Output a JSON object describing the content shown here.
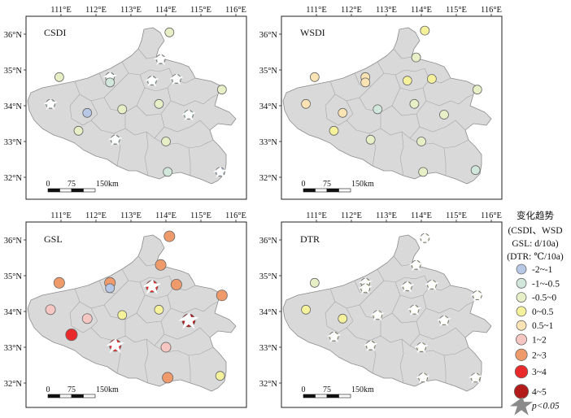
{
  "map": {
    "lon_ticks": [
      "111°E",
      "112°E",
      "113°E",
      "114°E",
      "115°E",
      "116°E"
    ],
    "lat_ticks": [
      "36°N",
      "35°N",
      "34°N",
      "33°N",
      "32°N"
    ],
    "lon_values": [
      111,
      112,
      113,
      114,
      115,
      116
    ],
    "lat_values": [
      36,
      35,
      34,
      33,
      32
    ],
    "scale_bar": {
      "labels": [
        "0",
        "75",
        "150km"
      ]
    },
    "panels": [
      {
        "id": "csdi",
        "title": "CSDI",
        "stations": [
          {
            "lon": 114.1,
            "lat": 36.05,
            "cls": 2,
            "sig": false
          },
          {
            "lon": 113.85,
            "lat": 35.3,
            "cls": 1,
            "sig": true
          },
          {
            "lon": 110.95,
            "lat": 34.8,
            "cls": 2,
            "sig": false
          },
          {
            "lon": 112.4,
            "lat": 34.8,
            "cls": 1,
            "sig": true
          },
          {
            "lon": 112.4,
            "lat": 34.65,
            "cls": 1,
            "sig": false
          },
          {
            "lon": 113.6,
            "lat": 34.7,
            "cls": 1,
            "sig": true
          },
          {
            "lon": 114.3,
            "lat": 34.75,
            "cls": 1,
            "sig": true
          },
          {
            "lon": 115.6,
            "lat": 34.45,
            "cls": 2,
            "sig": false
          },
          {
            "lon": 110.7,
            "lat": 34.05,
            "cls": 1,
            "sig": true
          },
          {
            "lon": 111.75,
            "lat": 33.8,
            "cls": 0,
            "sig": false
          },
          {
            "lon": 112.75,
            "lat": 33.9,
            "cls": 2,
            "sig": false
          },
          {
            "lon": 113.8,
            "lat": 34.05,
            "cls": 2,
            "sig": false
          },
          {
            "lon": 114.65,
            "lat": 33.75,
            "cls": 1,
            "sig": true
          },
          {
            "lon": 111.5,
            "lat": 33.3,
            "cls": 2,
            "sig": false
          },
          {
            "lon": 112.55,
            "lat": 33.05,
            "cls": 1,
            "sig": true
          },
          {
            "lon": 114.0,
            "lat": 33.0,
            "cls": 2,
            "sig": false
          },
          {
            "lon": 114.05,
            "lat": 32.15,
            "cls": 1,
            "sig": false
          },
          {
            "lon": 115.55,
            "lat": 32.15,
            "cls": 0,
            "sig": true
          }
        ]
      },
      {
        "id": "wsdi",
        "title": "WSDI",
        "stations": [
          {
            "lon": 114.1,
            "lat": 36.1,
            "cls": 3,
            "sig": false
          },
          {
            "lon": 113.85,
            "lat": 35.35,
            "cls": 2,
            "sig": false
          },
          {
            "lon": 110.95,
            "lat": 34.8,
            "cls": 4,
            "sig": false
          },
          {
            "lon": 112.4,
            "lat": 34.8,
            "cls": 4,
            "sig": false
          },
          {
            "lon": 112.4,
            "lat": 34.65,
            "cls": 4,
            "sig": false
          },
          {
            "lon": 113.6,
            "lat": 34.7,
            "cls": 3,
            "sig": false
          },
          {
            "lon": 114.3,
            "lat": 34.75,
            "cls": 3,
            "sig": false
          },
          {
            "lon": 115.6,
            "lat": 34.45,
            "cls": 2,
            "sig": false
          },
          {
            "lon": 110.7,
            "lat": 34.05,
            "cls": 4,
            "sig": false
          },
          {
            "lon": 111.75,
            "lat": 33.8,
            "cls": 4,
            "sig": false
          },
          {
            "lon": 112.75,
            "lat": 33.9,
            "cls": 1,
            "sig": false
          },
          {
            "lon": 113.8,
            "lat": 34.05,
            "cls": 2,
            "sig": false
          },
          {
            "lon": 114.65,
            "lat": 33.75,
            "cls": 2,
            "sig": false
          },
          {
            "lon": 111.5,
            "lat": 33.3,
            "cls": 3,
            "sig": false
          },
          {
            "lon": 112.55,
            "lat": 33.05,
            "cls": 2,
            "sig": false
          },
          {
            "lon": 114.0,
            "lat": 33.0,
            "cls": 2,
            "sig": false
          },
          {
            "lon": 114.05,
            "lat": 32.15,
            "cls": 2,
            "sig": false
          },
          {
            "lon": 115.55,
            "lat": 32.2,
            "cls": 1,
            "sig": false
          }
        ]
      },
      {
        "id": "gsl",
        "title": "GSL",
        "stations": [
          {
            "lon": 114.1,
            "lat": 36.1,
            "cls": 6,
            "sig": false
          },
          {
            "lon": 113.85,
            "lat": 35.3,
            "cls": 6,
            "sig": false
          },
          {
            "lon": 110.95,
            "lat": 34.8,
            "cls": 6,
            "sig": false
          },
          {
            "lon": 112.4,
            "lat": 34.8,
            "cls": 6,
            "sig": false
          },
          {
            "lon": 112.4,
            "lat": 34.65,
            "cls": 0,
            "sig": false
          },
          {
            "lon": 113.6,
            "lat": 34.7,
            "cls": 7,
            "sig": true
          },
          {
            "lon": 114.3,
            "lat": 34.75,
            "cls": 6,
            "sig": false
          },
          {
            "lon": 115.6,
            "lat": 34.45,
            "cls": 6,
            "sig": false
          },
          {
            "lon": 110.7,
            "lat": 34.05,
            "cls": 5,
            "sig": false
          },
          {
            "lon": 111.75,
            "lat": 33.8,
            "cls": 5,
            "sig": false
          },
          {
            "lon": 112.75,
            "lat": 33.9,
            "cls": 3,
            "sig": false
          },
          {
            "lon": 113.8,
            "lat": 34.05,
            "cls": 3,
            "sig": false
          },
          {
            "lon": 114.65,
            "lat": 33.75,
            "cls": 8,
            "sig": true
          },
          {
            "lon": 111.3,
            "lat": 33.35,
            "cls": 7,
            "sig": false
          },
          {
            "lon": 112.55,
            "lat": 33.05,
            "cls": 7,
            "sig": true
          },
          {
            "lon": 114.0,
            "lat": 33.0,
            "cls": 5,
            "sig": false
          },
          {
            "lon": 114.05,
            "lat": 32.15,
            "cls": 6,
            "sig": false
          },
          {
            "lon": 115.55,
            "lat": 32.2,
            "cls": 3,
            "sig": false
          }
        ]
      },
      {
        "id": "dtr",
        "title": "DTR",
        "stations": [
          {
            "lon": 114.1,
            "lat": 36.05,
            "cls": 2,
            "sig": true
          },
          {
            "lon": 113.85,
            "lat": 35.3,
            "cls": 2,
            "sig": true
          },
          {
            "lon": 110.95,
            "lat": 34.8,
            "cls": 2,
            "sig": false
          },
          {
            "lon": 112.4,
            "lat": 34.8,
            "cls": 2,
            "sig": true
          },
          {
            "lon": 112.4,
            "lat": 34.65,
            "cls": 2,
            "sig": true
          },
          {
            "lon": 113.6,
            "lat": 34.7,
            "cls": 2,
            "sig": true
          },
          {
            "lon": 114.3,
            "lat": 34.75,
            "cls": 2,
            "sig": true
          },
          {
            "lon": 115.6,
            "lat": 34.45,
            "cls": 2,
            "sig": true
          },
          {
            "lon": 110.7,
            "lat": 34.05,
            "cls": 3,
            "sig": false
          },
          {
            "lon": 111.75,
            "lat": 33.8,
            "cls": 3,
            "sig": false
          },
          {
            "lon": 112.75,
            "lat": 33.9,
            "cls": 2,
            "sig": true
          },
          {
            "lon": 113.8,
            "lat": 34.05,
            "cls": 2,
            "sig": true
          },
          {
            "lon": 114.65,
            "lat": 33.75,
            "cls": 2,
            "sig": true
          },
          {
            "lon": 111.5,
            "lat": 33.3,
            "cls": 2,
            "sig": true
          },
          {
            "lon": 112.55,
            "lat": 33.05,
            "cls": 2,
            "sig": true
          },
          {
            "lon": 114.0,
            "lat": 33.0,
            "cls": 2,
            "sig": true
          },
          {
            "lon": 114.05,
            "lat": 32.15,
            "cls": 2,
            "sig": true
          },
          {
            "lon": 115.55,
            "lat": 32.15,
            "cls": 2,
            "sig": true
          }
        ]
      }
    ]
  },
  "legend": {
    "title_lines": [
      "变化趋势",
      "(CSDI、WSD",
      "GSL: d/10a)",
      "(DTR: ℃/10a)"
    ],
    "classes": [
      {
        "label": "-2~-1",
        "color": "#b7c7e6",
        "size": 1.0
      },
      {
        "label": "-1~-0.5",
        "color": "#d2e7dc",
        "size": 1.0
      },
      {
        "label": "-0.5~0",
        "color": "#e6efc6",
        "size": 1.0
      },
      {
        "label": "0~0.5",
        "color": "#f6f29b",
        "size": 1.0
      },
      {
        "label": "0.5~1",
        "color": "#fbe3b4",
        "size": 1.0
      },
      {
        "label": "1~2",
        "color": "#f6c6c3",
        "size": 1.1
      },
      {
        "label": "2~3",
        "color": "#ef9a6b",
        "size": 1.2
      },
      {
        "label": "3~4",
        "color": "#ea2a2a",
        "size": 1.3
      },
      {
        "label": "4~5",
        "color": "#b31b1b",
        "size": 1.45
      }
    ],
    "significance_label": "p<0.05"
  }
}
